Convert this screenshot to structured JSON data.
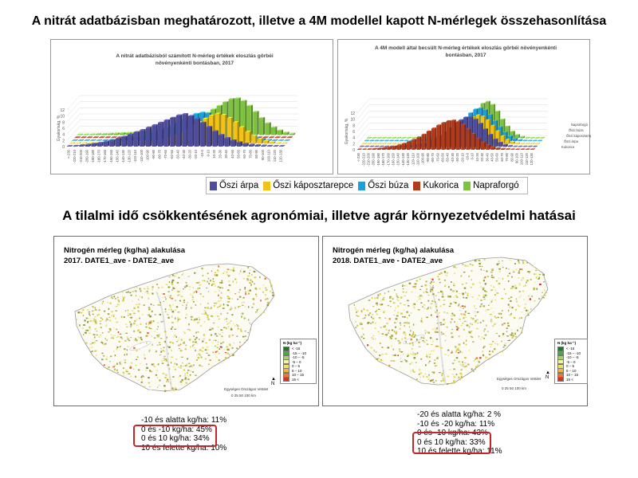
{
  "titles": {
    "top": "A nitrát adatbázisban meghatározott, illetve a 4M modellel kapott N-mérlegek összehasonlítása",
    "middle": "A tilalmi idő csökkentésének agronómiai, illetve agrár környezetvédelmi hatásai"
  },
  "colors": {
    "oszi_arpa": "#4e4c9c",
    "oszi_kaposztarepce": "#f2c316",
    "oszi_buza": "#1f9fd7",
    "kukorica": "#b03a1a",
    "napraforgo": "#7fc241",
    "highlight": "#c0262b"
  },
  "legend": [
    "Őszi árpa",
    "Őszi káposztarepce",
    "Őszi búza",
    "Kukorica",
    "Napraforgó"
  ],
  "chart_data": [
    {
      "type": "bar",
      "title": "A nitrát adatbázisból számított N-mérleg értékek eloszlás görbéi növényenkénti bontásban, 2017",
      "ylabel": "Gyakoriság, %",
      "ylim": [
        0,
        12
      ],
      "yticks": [
        "0",
        "2",
        "4",
        "6",
        "8",
        "10",
        "12"
      ],
      "categories": [
        "<-230",
        "-220-210",
        "-210-200",
        "-200-190",
        "-190-180",
        "-180-170",
        "-170-160",
        "-160-150",
        "-150-140",
        "-140-130",
        "-130-120",
        "-120-110",
        "-110-100",
        "-100-90",
        "-90-80",
        "-80-70",
        "-70-60",
        "-60-50",
        "-50-40",
        "-40-30",
        "-30-20",
        "-20-10",
        "-10-0",
        "0-10",
        "10-20",
        "20-30",
        "30-40",
        "40-50",
        "50-60",
        "60-70",
        "70-80",
        "80-90",
        "90-100",
        "100-110",
        "110-120",
        "120-130"
      ],
      "series": [
        {
          "name": "Őszi árpa",
          "values": [
            0.1,
            0.2,
            0.4,
            0.6,
            0.9,
            1.2,
            1.6,
            2.0,
            2.6,
            3.2,
            3.9,
            4.7,
            5.4,
            6.2,
            7.0,
            7.8,
            8.6,
            9.4,
            10.2,
            10.6,
            10.0,
            9.0,
            7.8,
            6.4,
            5.0,
            3.8,
            2.8,
            2.0,
            1.4,
            0.9,
            0.6,
            0.4,
            0.3,
            0.2,
            0.1,
            0.1
          ]
        },
        {
          "name": "Őszi káposztarepce",
          "values": [
            0,
            0,
            0,
            0,
            0,
            0,
            0,
            0,
            0.1,
            0.1,
            0.2,
            0.3,
            0.4,
            0.6,
            0.9,
            1.3,
            1.9,
            2.6,
            3.5,
            4.6,
            5.8,
            7.0,
            8.2,
            9.2,
            9.8,
            9.4,
            8.4,
            7.0,
            5.4,
            3.9,
            2.6,
            1.6,
            0.9,
            0.5,
            0.2,
            0.1
          ]
        },
        {
          "name": "Őszi búza",
          "values": [
            0,
            0,
            0,
            0.1,
            0.1,
            0.2,
            0.3,
            0.4,
            0.6,
            0.8,
            1.1,
            1.5,
            2.0,
            2.6,
            3.3,
            4.1,
            5.0,
            6.0,
            7.0,
            8.0,
            8.8,
            9.2,
            9.0,
            8.4,
            7.4,
            6.2,
            4.9,
            3.7,
            2.6,
            1.7,
            1.0,
            0.6,
            0.3,
            0.2,
            0.1,
            0
          ]
        },
        {
          "name": "Kukorica",
          "values": [
            0,
            0,
            0,
            0,
            0,
            0,
            0,
            0,
            0,
            0,
            0,
            0,
            0,
            0,
            0,
            0,
            0,
            0,
            0,
            0,
            0,
            0,
            0,
            0,
            0,
            0,
            0,
            0,
            0,
            0,
            0,
            0,
            0,
            0,
            0,
            0
          ]
        },
        {
          "name": "Napraforgó",
          "values": [
            0.1,
            0.1,
            0.2,
            0.3,
            0.3,
            0.4,
            0.5,
            0.6,
            0.7,
            0.8,
            1.0,
            1.2,
            1.4,
            1.7,
            2.0,
            2.4,
            2.9,
            3.5,
            4.2,
            5.0,
            6.0,
            7.2,
            8.4,
            9.6,
            10.8,
            11.8,
            12.0,
            11.2,
            9.6,
            7.6,
            5.6,
            3.9,
            2.5,
            1.5,
            0.8,
            0.4
          ]
        }
      ]
    },
    {
      "type": "bar",
      "title": "A 4M modell által becsült N-mérleg értékek eloszlás görbéi növényenkénti bontásban, 2017",
      "ylabel": "Gyakoriság, %",
      "ylim": [
        0,
        12
      ],
      "yticks": [
        "0",
        "2",
        "4",
        "6",
        "8",
        "10",
        "12"
      ],
      "depth_labels": [
        "Napraforgó",
        "Őszi búza",
        "Őszi káposztarepce",
        "Őszi árpa",
        "Kukorica"
      ],
      "categories": [
        "<-230",
        "-220-210",
        "-210-200",
        "-200-190",
        "-190-180",
        "-180-170",
        "-170-160",
        "-160-150",
        "-150-140",
        "-140-130",
        "-130-120",
        "-120-110",
        "-110-100",
        "-100-90",
        "-90-80",
        "-80-70",
        "-70-60",
        "-60-50",
        "-50-40",
        "-40-30",
        "-30-20",
        "-20-10",
        "-10-0",
        "0-10",
        "10-20",
        "20-30",
        "30-40",
        "40-50",
        "50-60",
        "60-70",
        "70-80",
        "80-90",
        "90-100",
        "100-110",
        "110-120",
        "120-130"
      ],
      "series": [
        {
          "name": "Kukorica",
          "values": [
            0.1,
            0.1,
            0.2,
            0.3,
            0.4,
            0.6,
            0.8,
            1.1,
            1.5,
            2.0,
            2.6,
            3.3,
            4.1,
            5.0,
            6.0,
            7.0,
            8.0,
            8.8,
            9.4,
            9.6,
            9.2,
            8.2,
            6.8,
            5.2,
            3.7,
            2.4,
            1.5,
            0.9,
            0.5,
            0.3,
            0.2,
            0.1,
            0.1,
            0,
            0,
            0
          ]
        },
        {
          "name": "Őszi árpa",
          "values": [
            0,
            0,
            0,
            0,
            0,
            0,
            0,
            0.1,
            0.1,
            0.2,
            0.3,
            0.5,
            0.8,
            1.2,
            1.8,
            2.6,
            3.6,
            4.8,
            6.2,
            7.6,
            8.8,
            9.6,
            9.8,
            9.0,
            7.6,
            5.8,
            4.0,
            2.5,
            1.4,
            0.7,
            0.3,
            0.1,
            0,
            0,
            0,
            0
          ]
        },
        {
          "name": "Őszi káposztarepce",
          "values": [
            0,
            0,
            0,
            0,
            0,
            0,
            0,
            0,
            0,
            0.1,
            0.1,
            0.2,
            0.3,
            0.5,
            0.8,
            1.2,
            1.8,
            2.6,
            3.6,
            4.8,
            6.2,
            7.6,
            8.8,
            9.4,
            9.0,
            7.8,
            6.0,
            4.2,
            2.6,
            1.4,
            0.7,
            0.3,
            0.1,
            0,
            0,
            0
          ]
        },
        {
          "name": "Őszi búza",
          "values": [
            0,
            0,
            0,
            0,
            0,
            0,
            0,
            0,
            0.1,
            0.1,
            0.2,
            0.3,
            0.5,
            0.8,
            1.2,
            1.8,
            2.6,
            3.6,
            4.8,
            6.2,
            7.8,
            9.2,
            10.4,
            10.8,
            10.2,
            8.6,
            6.6,
            4.6,
            2.9,
            1.6,
            0.8,
            0.4,
            0.2,
            0.1,
            0,
            0
          ]
        },
        {
          "name": "Napraforgó",
          "values": [
            0,
            0,
            0,
            0,
            0,
            0,
            0,
            0,
            0,
            0,
            0,
            0.1,
            0.2,
            0.3,
            0.5,
            0.8,
            1.2,
            1.8,
            2.6,
            3.8,
            5.4,
            7.4,
            9.6,
            11.4,
            12.0,
            11.0,
            8.8,
            6.2,
            3.9,
            2.2,
            1.1,
            0.5,
            0.2,
            0.1,
            0,
            0
          ]
        }
      ]
    }
  ],
  "maps": [
    {
      "title_line1": "Nitrogén mérleg (kg/ha) alakulása",
      "title_line2": "2017. DATE1_ave - DATE2_ave",
      "legend_title": "N (kg ha⁻¹)",
      "legend_rows": [
        "< -15",
        "-15 – -10",
        "-10 – -5",
        "-5 – 0",
        "0 – 5",
        "5 – 10",
        "10 – 15",
        "15 <"
      ],
      "credit": "Egységes Országos Vetület",
      "scale": "0   25   50        100 km"
    },
    {
      "title_line1": "Nitrogén mérleg (kg/ha) alakulása",
      "title_line2": "2018. DATE1_ave - DATE2_ave",
      "legend_title": "N (kg ha⁻¹)",
      "legend_rows": [
        "< -15",
        "-15 – -10",
        "-10 – -5",
        "-5 – 0",
        "0 – 5",
        "5 – 10",
        "10 – 15",
        "15 <"
      ],
      "credit": "Egységes Országos Vetület",
      "scale": "0   25   50        100 km"
    }
  ],
  "map_legend_colors": [
    "#1a7a2a",
    "#4ea843",
    "#a6d36b",
    "#f3f3a2",
    "#f0e060",
    "#f2b640",
    "#ea7a2a",
    "#d8322a"
  ],
  "stats_left": [
    "-10 és alatta kg/ha: 11%",
    "0 és -10 kg/ha: 45%",
    "0 és 10 kg/ha: 34%",
    "10 és felette kg/ha: 10%"
  ],
  "stats_right": [
    "-20 és alatta kg/ha: 2 %",
    "-10 és -20 kg/ha: 11%",
    "0 és -10 kg/ha: 43%",
    "0 és 10 kg/ha: 33%",
    "10 és felette kg/ha: 11%"
  ]
}
